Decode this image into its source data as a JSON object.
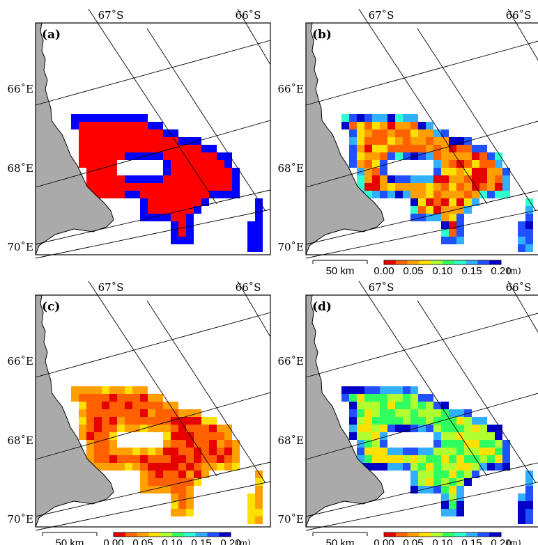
{
  "lat_labels": [
    "67˚S",
    "66˚S"
  ],
  "lon_labels": [
    "66˚E",
    "68˚E",
    "70˚E"
  ],
  "scale_bar": "50 km",
  "colorbar": {
    "ticks": [
      "0.00",
      "0.05",
      "0.10",
      "0.15",
      "0.20"
    ],
    "unit": "(m)",
    "colors": [
      "#e60000",
      "#ff6000",
      "#ffa000",
      "#ffe000",
      "#b0ff30",
      "#30ff60",
      "#30ffd0",
      "#30b0ff",
      "#2050ff",
      "#0000c8"
    ]
  },
  "colors": {
    "land": "#aaaaaa",
    "ocean": "#ffffff",
    "mask_red": "#ff0000",
    "mask_blue": "#0000ff"
  },
  "panels": [
    {
      "tag": "(a)",
      "kind": "mask"
    },
    {
      "tag": "(b)",
      "kind": "thickness"
    },
    {
      "tag": "(c)",
      "kind": "thickness"
    },
    {
      "tag": "(d)",
      "kind": "thickness"
    }
  ]
}
